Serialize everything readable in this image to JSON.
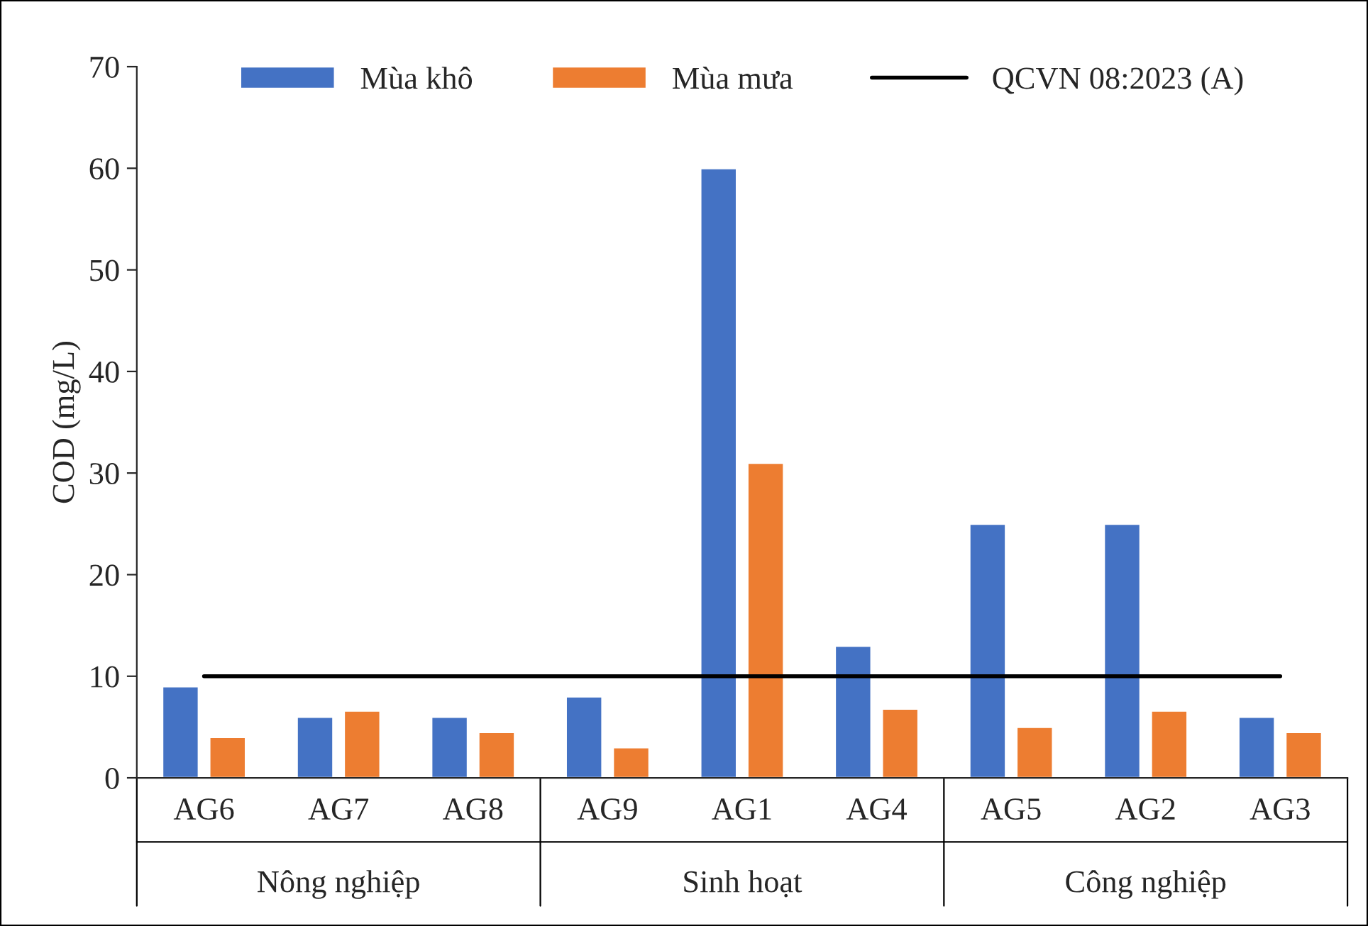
{
  "chart_data": {
    "type": "bar",
    "ylabel": "COD (mg/L)",
    "categories": [
      "AG6",
      "AG7",
      "AG8",
      "AG9",
      "AG1",
      "AG4",
      "AG5",
      "AG2",
      "AG3"
    ],
    "series": [
      {
        "name": "Mùa khô",
        "color": "#4472c4",
        "values": [
          9,
          6,
          6,
          8,
          60,
          13,
          25,
          25,
          6
        ]
      },
      {
        "name": "Mùa mưa",
        "color": "#ed7d31",
        "values": [
          4,
          6.6,
          4.5,
          3,
          31,
          6.8,
          5,
          6.6,
          4.5
        ]
      },
      {
        "name": "QCVN 08:2023 (A)",
        "type": "line",
        "color": "#000000",
        "values": [
          10,
          10,
          10,
          10,
          10,
          10,
          10,
          10,
          10
        ]
      }
    ],
    "annotations": [
      "Nông nghiệp",
      "Sinh hoạt",
      "Công nghiệp"
    ],
    "ylim": [
      0,
      70
    ],
    "yticks": [
      0,
      10,
      20,
      30,
      40,
      50,
      60,
      70
    ],
    "grid": false,
    "legend": "top"
  }
}
